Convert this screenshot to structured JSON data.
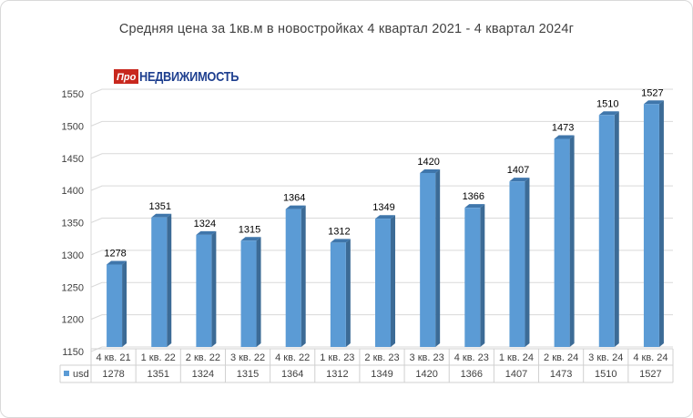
{
  "title": "Средняя  цена за 1кв.м в новостройках  4 квартал 2021 - 4 квартал  2024г",
  "logo": {
    "box_text": "Про",
    "text": "НЕДВИЖИМОСТЬ",
    "box_color": "#c8281e",
    "text_color": "#1e3f8f"
  },
  "chart_data": {
    "type": "bar",
    "categories": [
      "4 кв. 21",
      "1 кв. 22",
      "2 кв. 22",
      "3 кв. 22",
      "4 кв. 22",
      "1 кв. 23",
      "2 кв. 23",
      "3 кв. 23",
      "4 кв. 23",
      "1 кв. 24",
      "2 кв. 24",
      "3 кв. 24",
      "4 кв. 24"
    ],
    "series": [
      {
        "name": "usd",
        "values": [
          1278,
          1351,
          1324,
          1315,
          1364,
          1312,
          1349,
          1420,
          1366,
          1407,
          1473,
          1510,
          1527
        ],
        "color": "#5b9bd5"
      }
    ],
    "ylim": [
      1150,
      1550
    ],
    "yticks": [
      1150,
      1200,
      1250,
      1300,
      1350,
      1400,
      1450,
      1500,
      1550
    ],
    "grid": true,
    "data_table": true,
    "style": "3d-column"
  }
}
